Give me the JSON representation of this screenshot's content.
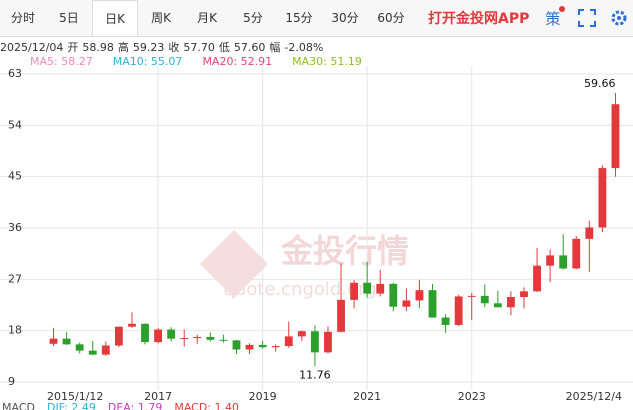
{
  "tabs": [
    "分时",
    "5日",
    "日K",
    "周K",
    "月K",
    "5分",
    "15分",
    "30分",
    "60分"
  ],
  "selected_tab": 2,
  "app_link": "打开金投网APP",
  "strategy_button": "策",
  "info": {
    "date": "2025/12/04",
    "items": [
      {
        "label": "开",
        "value": "58.98"
      },
      {
        "label": "高",
        "value": "59.23"
      },
      {
        "label": "收",
        "value": "57.70"
      },
      {
        "label": "低",
        "value": "57.60"
      },
      {
        "label": "幅",
        "value": "-2.08%"
      }
    ]
  },
  "moving_averages": [
    {
      "text": "MA5: 58.27",
      "color": "#f28cb1"
    },
    {
      "text": "MA10: 55.07",
      "color": "#2bb3d6"
    },
    {
      "text": "MA20: 52.91",
      "color": "#e8437a"
    },
    {
      "text": "MA30: 51.19",
      "color": "#8dc21f"
    }
  ],
  "watermark": {
    "title": "金投行情",
    "url": "quote.cngold.org"
  },
  "macd": [
    {
      "text": "MACD",
      "color": "#555"
    },
    {
      "text": "DIF: 2.49",
      "color": "#2bb3d6"
    },
    {
      "text": "DEA: 1.79",
      "color": "#c03cc0"
    },
    {
      "text": "MACD: 1.40",
      "color": "#e4393c"
    }
  ],
  "chart_data": {
    "type": "candlestick",
    "categories": [
      "2015/1/12",
      null,
      null,
      null,
      null,
      null,
      null,
      null,
      "2017",
      null,
      null,
      null,
      null,
      null,
      null,
      null,
      "2019",
      null,
      null,
      null,
      null,
      null,
      null,
      null,
      "2021",
      null,
      null,
      null,
      null,
      null,
      null,
      null,
      "2023",
      null,
      null,
      null,
      null,
      null,
      null,
      null,
      null,
      null,
      null,
      "2025/12/4"
    ],
    "open": [
      15.7,
      16.6,
      15.6,
      14.5,
      13.8,
      15.4,
      18.7,
      19.2,
      16.0,
      18.2,
      16.6,
      16.7,
      16.9,
      16.4,
      16.3,
      14.7,
      15.5,
      15.1,
      15.3,
      17.0,
      17.9,
      14.2,
      17.8,
      23.4,
      26.4,
      24.5,
      26.2,
      22.2,
      23.3,
      25.1,
      20.3,
      19.0,
      24.0,
      24.1,
      22.8,
      22.1,
      23.9,
      24.9,
      29.4,
      31.2,
      28.9,
      34.1,
      36.1,
      46.5
    ],
    "high": [
      18.5,
      17.8,
      15.9,
      16.2,
      16.1,
      18.7,
      21.2,
      19.3,
      18.5,
      18.6,
      18.2,
      17.3,
      17.7,
      17.3,
      16.4,
      15.8,
      16.2,
      15.6,
      19.6,
      18.0,
      18.9,
      18.7,
      29.8,
      26.9,
      30.1,
      28.7,
      26.4,
      25.4,
      26.9,
      26.2,
      20.9,
      24.3,
      24.6,
      26.1,
      25.0,
      24.9,
      25.6,
      32.5,
      32.2,
      34.9,
      34.6,
      37.3,
      47.0,
      59.66
    ],
    "low": [
      15.3,
      15.5,
      14.0,
      13.7,
      13.6,
      15.1,
      18.5,
      15.6,
      15.8,
      16.1,
      15.2,
      15.7,
      16.1,
      15.9,
      13.9,
      13.9,
      14.8,
      14.3,
      15.0,
      16.2,
      11.76,
      14.0,
      17.7,
      21.9,
      23.8,
      24.0,
      21.4,
      21.4,
      22.0,
      20.3,
      17.6,
      18.8,
      19.9,
      22.1,
      22.1,
      20.7,
      21.9,
      24.8,
      26.5,
      28.7,
      28.8,
      28.3,
      35.3,
      45.0
    ],
    "close": [
      16.6,
      15.6,
      14.5,
      13.8,
      15.4,
      18.7,
      19.2,
      16.0,
      18.2,
      16.6,
      16.7,
      16.9,
      16.4,
      16.3,
      14.7,
      15.5,
      15.1,
      15.3,
      17.0,
      17.9,
      14.2,
      17.8,
      23.4,
      26.4,
      24.5,
      26.2,
      22.2,
      23.3,
      25.1,
      20.3,
      19.0,
      24.0,
      24.1,
      22.8,
      22.1,
      23.9,
      24.9,
      29.4,
      31.2,
      28.9,
      34.1,
      36.1,
      46.5,
      57.7
    ],
    "up_color": "#e4393c",
    "down_color": "#2ca02c",
    "extremes": {
      "max": 59.66,
      "min": 11.76
    },
    "ylim": [
      9,
      63
    ],
    "yticks": [
      9,
      18,
      27,
      36,
      45,
      54,
      63
    ],
    "grid": true
  }
}
